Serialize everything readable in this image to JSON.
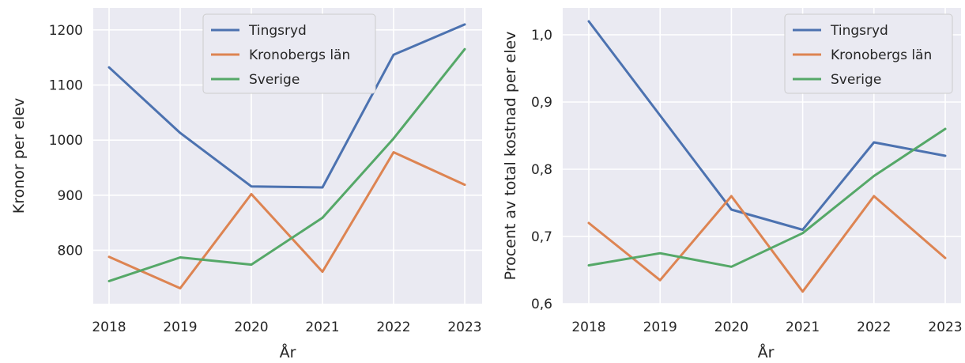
{
  "chart_data": [
    {
      "type": "line",
      "title": "",
      "xlabel": "År",
      "ylabel": "Kronor per elev",
      "x": [
        "2018",
        "2019",
        "2020",
        "2021",
        "2022",
        "2023"
      ],
      "ylim": [
        703,
        1240
      ],
      "yticks": [
        800,
        900,
        1000,
        1100,
        1200
      ],
      "ytick_labels": [
        "800",
        "900",
        "1000",
        "1100",
        "1200"
      ],
      "grid": true,
      "legend": "top-center",
      "series": [
        {
          "name": "Tingsryd",
          "color": "#4c72b0",
          "values": [
            1132,
            1013,
            916,
            914,
            1155,
            1210
          ]
        },
        {
          "name": "Kronobergs län",
          "color": "#dd8452",
          "values": [
            788,
            731,
            902,
            761,
            978,
            919
          ]
        },
        {
          "name": "Sverige",
          "color": "#55a868",
          "values": [
            744,
            787,
            774,
            859,
            1003,
            1165
          ]
        }
      ]
    },
    {
      "type": "line",
      "title": "",
      "xlabel": "År",
      "ylabel": "Procent av total kostnad per elev",
      "x": [
        "2018",
        "2019",
        "2020",
        "2021",
        "2022",
        "2023"
      ],
      "ylim": [
        0.6,
        1.04
      ],
      "yticks": [
        0.6,
        0.7,
        0.8,
        0.9,
        1.0
      ],
      "ytick_labels": [
        "0,6",
        "0,7",
        "0,8",
        "0,9",
        "1,0"
      ],
      "grid": true,
      "legend": "top-right",
      "series": [
        {
          "name": "Tingsryd",
          "color": "#4c72b0",
          "values": [
            1.02,
            0.88,
            0.74,
            0.71,
            0.84,
            0.82
          ]
        },
        {
          "name": "Kronobergs län",
          "color": "#dd8452",
          "values": [
            0.72,
            0.635,
            0.76,
            0.618,
            0.76,
            0.668
          ]
        },
        {
          "name": "Sverige",
          "color": "#55a868",
          "values": [
            0.657,
            0.675,
            0.655,
            0.705,
            0.79,
            0.86
          ]
        }
      ]
    }
  ]
}
